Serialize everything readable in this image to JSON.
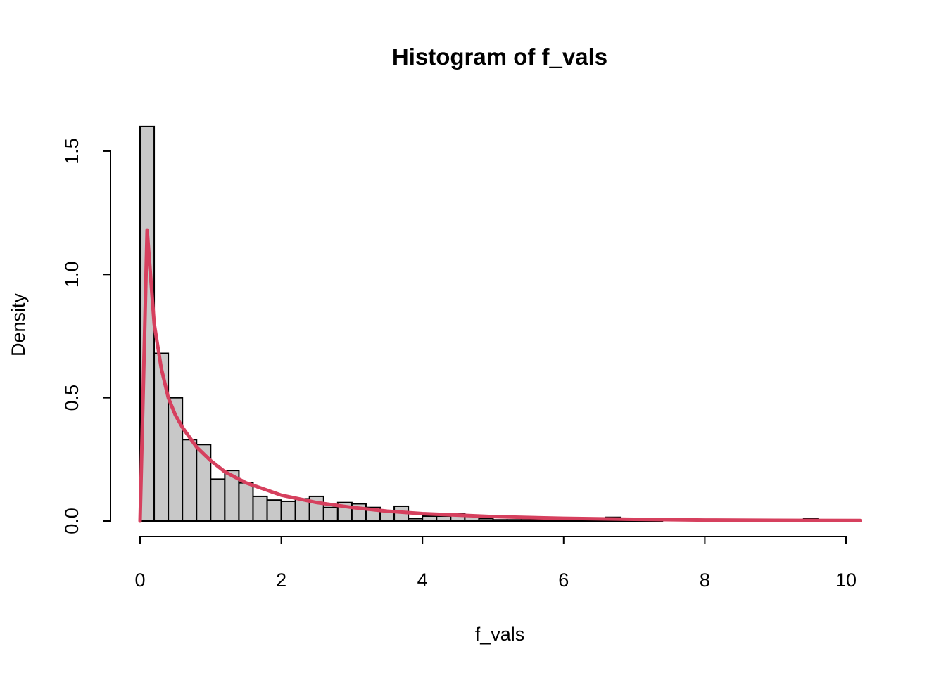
{
  "chart_data": {
    "type": "bar",
    "title": "Histogram of f_vals",
    "xlabel": "f_vals",
    "ylabel": "Density",
    "xlim": [
      0,
      10.2
    ],
    "ylim": [
      0,
      1.6
    ],
    "x_ticks": [
      "0",
      "2",
      "4",
      "6",
      "8",
      "10"
    ],
    "x_tick_values": [
      0,
      2,
      4,
      6,
      8,
      10
    ],
    "y_ticks": [
      "0.0",
      "0.5",
      "1.0",
      "1.5"
    ],
    "y_tick_values": [
      0,
      0.5,
      1.0,
      1.5
    ],
    "bin_width": 0.2,
    "bins": [
      [
        0.0,
        1.6
      ],
      [
        0.2,
        0.68
      ],
      [
        0.4,
        0.5
      ],
      [
        0.6,
        0.33
      ],
      [
        0.8,
        0.31
      ],
      [
        1.0,
        0.17
      ],
      [
        1.2,
        0.205
      ],
      [
        1.4,
        0.155
      ],
      [
        1.6,
        0.1
      ],
      [
        1.8,
        0.085
      ],
      [
        2.0,
        0.08
      ],
      [
        2.2,
        0.09
      ],
      [
        2.4,
        0.1
      ],
      [
        2.6,
        0.055
      ],
      [
        2.8,
        0.075
      ],
      [
        3.0,
        0.07
      ],
      [
        3.2,
        0.055
      ],
      [
        3.4,
        0.04
      ],
      [
        3.6,
        0.06
      ],
      [
        3.8,
        0.01
      ],
      [
        4.0,
        0.02
      ],
      [
        4.2,
        0.02
      ],
      [
        4.4,
        0.03
      ],
      [
        4.6,
        0.02
      ],
      [
        4.8,
        0.01
      ],
      [
        5.0,
        0.005
      ],
      [
        5.2,
        0.005
      ],
      [
        5.4,
        0.005
      ],
      [
        5.6,
        0.005
      ],
      [
        5.8,
        0.01
      ],
      [
        6.0,
        0.005
      ],
      [
        6.2,
        0.005
      ],
      [
        6.4,
        0.005
      ],
      [
        6.6,
        0.015
      ],
      [
        6.8,
        0.005
      ],
      [
        7.0,
        0.005
      ],
      [
        7.2,
        0.005
      ],
      [
        7.4,
        0
      ],
      [
        7.6,
        0
      ],
      [
        7.8,
        0
      ],
      [
        8.0,
        0
      ],
      [
        8.2,
        0
      ],
      [
        8.4,
        0
      ],
      [
        8.6,
        0
      ],
      [
        8.8,
        0
      ],
      [
        9.0,
        0
      ],
      [
        9.2,
        0
      ],
      [
        9.4,
        0.01
      ],
      [
        9.6,
        0
      ]
    ],
    "density_curve": {
      "color": "#D6405E",
      "x": [
        0,
        0.1,
        0.2,
        0.3,
        0.4,
        0.5,
        0.6,
        0.8,
        1.0,
        1.2,
        1.5,
        2.0,
        2.5,
        3.0,
        3.5,
        4.0,
        5.0,
        6.0,
        7.0,
        8.0,
        9.0,
        10.2
      ],
      "y": [
        0,
        1.18,
        0.8,
        0.62,
        0.5,
        0.43,
        0.38,
        0.3,
        0.245,
        0.2,
        0.155,
        0.105,
        0.075,
        0.055,
        0.04,
        0.03,
        0.018,
        0.011,
        0.007,
        0.004,
        0.003,
        0.002
      ]
    },
    "bar_fill": "#C8C8C8",
    "grid": false
  }
}
